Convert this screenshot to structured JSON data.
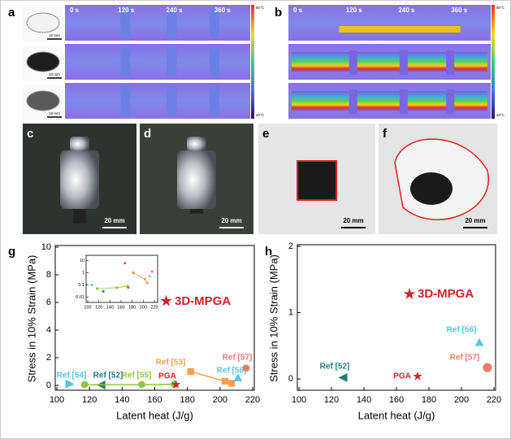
{
  "panel_labels": [
    "a",
    "b",
    "c",
    "d",
    "e",
    "f",
    "g",
    "h"
  ],
  "thermal": {
    "times": [
      "0 s",
      "120 s",
      "240 s",
      "360 s"
    ],
    "colorbar_max": "80°C",
    "colorbar_min": "20°C",
    "sample_scale": "10 mm"
  },
  "photo_scale": "20 mm",
  "chart_data": [
    {
      "type": "scatter",
      "xlabel": "Latent heat (J/g)",
      "ylabel": "Stress in 10% Strain (MPa)",
      "xlim": [
        100,
        220
      ],
      "ylim": [
        -0.35,
        10
      ],
      "xticks": [
        100,
        120,
        140,
        160,
        180,
        200,
        220
      ],
      "yticks": [
        0,
        2,
        4,
        6,
        8,
        10
      ],
      "series": [
        {
          "name": "Ref [54]",
          "color": "#4fc3e0",
          "marker": "triangle-right",
          "x": [
            108
          ],
          "values": [
            0.1
          ]
        },
        {
          "name": "Ref [52]",
          "color": "#2a7a7a",
          "marker": "triangle-left",
          "x": [
            127
          ],
          "values": [
            0.03
          ]
        },
        {
          "name": "Ref [55]",
          "color": "#8cc63e",
          "marker": "circle",
          "x": [
            117,
            152,
            172
          ],
          "values": [
            0.05,
            0.06,
            0.08
          ]
        },
        {
          "name": "PGA",
          "color": "#d8202a",
          "marker": "star",
          "x": [
            173
          ],
          "values": [
            0.06
          ]
        },
        {
          "name": "3D-MPGA",
          "color": "#d8202a",
          "marker": "star",
          "x": [
            167
          ],
          "values": [
            6.1
          ]
        },
        {
          "name": "Ref [53]",
          "color": "#f4a04a",
          "marker": "square",
          "x": [
            182,
            203,
            207
          ],
          "values": [
            1.0,
            0.3,
            0.15
          ]
        },
        {
          "name": "Ref [56]",
          "color": "#5ec4e6",
          "marker": "triangle-up",
          "x": [
            211
          ],
          "values": [
            0.55
          ]
        },
        {
          "name": "Ref [57]",
          "color": "#ee7a6a",
          "marker": "circle",
          "x": [
            216
          ],
          "values": [
            1.25
          ]
        }
      ],
      "inset": {
        "log_y": true,
        "xlim": [
          100,
          220
        ],
        "ylim": [
          0.005,
          20
        ],
        "xticks": [
          100,
          120,
          140,
          160,
          180,
          200,
          220
        ],
        "yticks": [
          0.01,
          0.1,
          1,
          10
        ]
      }
    },
    {
      "type": "scatter",
      "xlabel": "Latent heat (J/g)",
      "ylabel": "Stress in 10% Strain (MPa)",
      "xlim": [
        100,
        220
      ],
      "ylim": [
        -0.17,
        2
      ],
      "xticks": [
        100,
        120,
        140,
        160,
        180,
        200,
        220
      ],
      "yticks": [
        0,
        1,
        2
      ],
      "series": [
        {
          "name": "Ref [52]",
          "color": "#2a7a7a",
          "marker": "triangle-left",
          "x": [
            127
          ],
          "values": [
            0.02
          ]
        },
        {
          "name": "PGA",
          "color": "#d8202a",
          "marker": "star",
          "x": [
            173
          ],
          "values": [
            0.04
          ]
        },
        {
          "name": "3D-MPGA",
          "color": "#d8202a",
          "marker": "star",
          "x": [
            168
          ],
          "values": [
            1.28
          ]
        },
        {
          "name": "Ref [56]",
          "color": "#5ec4e6",
          "marker": "triangle-up",
          "x": [
            211
          ],
          "values": [
            0.55
          ]
        },
        {
          "name": "Ref [57]",
          "color": "#ee7a6a",
          "marker": "circle",
          "x": [
            216
          ],
          "values": [
            0.17
          ]
        }
      ]
    }
  ]
}
